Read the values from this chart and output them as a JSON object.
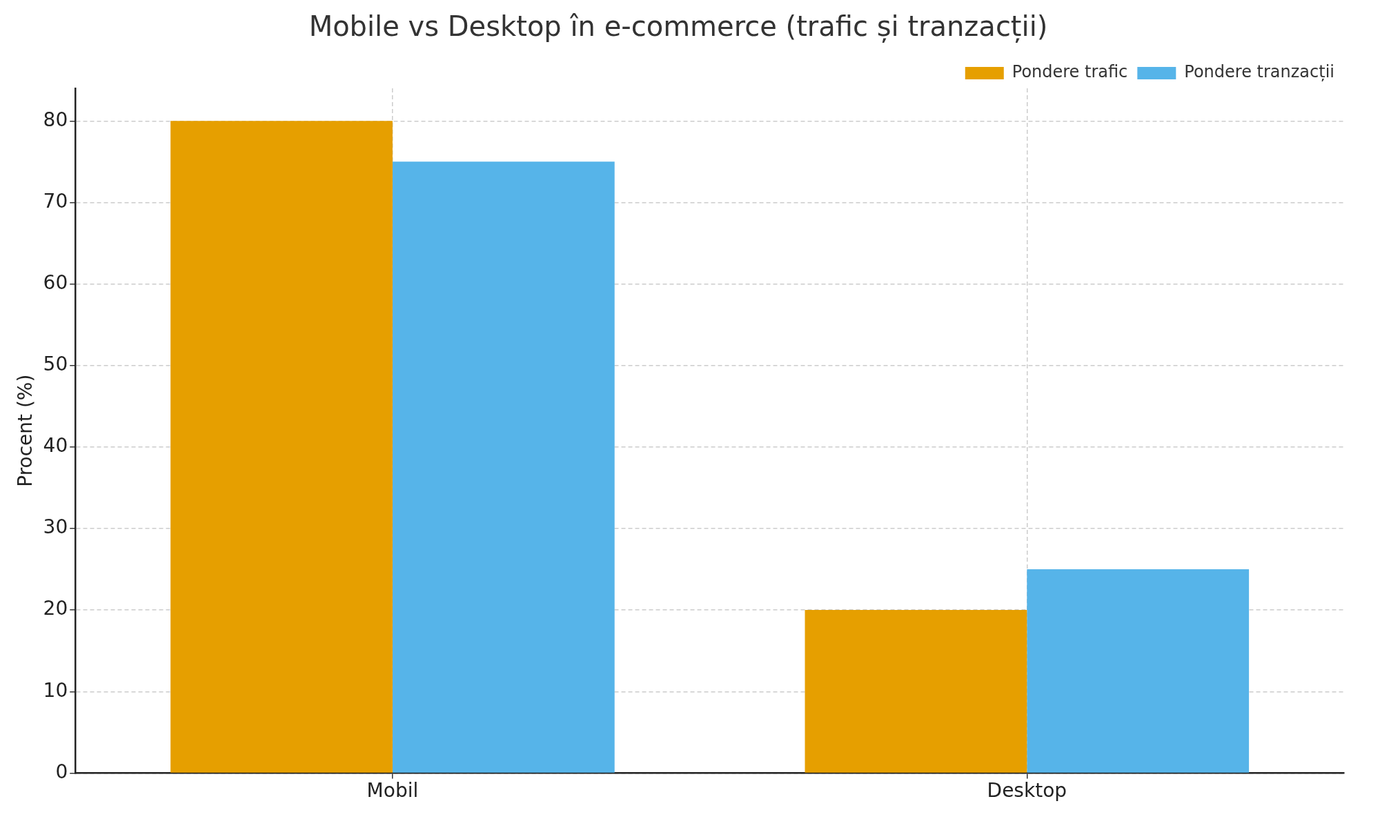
{
  "chart_data": {
    "type": "bar",
    "title": "Mobile vs Desktop în e-commerce (trafic și tranzacții)",
    "ylabel": "Procent (%)",
    "categories": [
      "Mobil",
      "Desktop"
    ],
    "series": [
      {
        "name": "Pondere trafic",
        "color": "#e69f00",
        "values": [
          80,
          20
        ]
      },
      {
        "name": "Pondere tranzacții",
        "color": "#56b4e9",
        "values": [
          75,
          25
        ]
      }
    ],
    "ylim": [
      0,
      84
    ],
    "yticks": [
      0,
      10,
      20,
      30,
      40,
      50,
      60,
      70,
      80
    ],
    "grid": true,
    "legend": "top right"
  }
}
